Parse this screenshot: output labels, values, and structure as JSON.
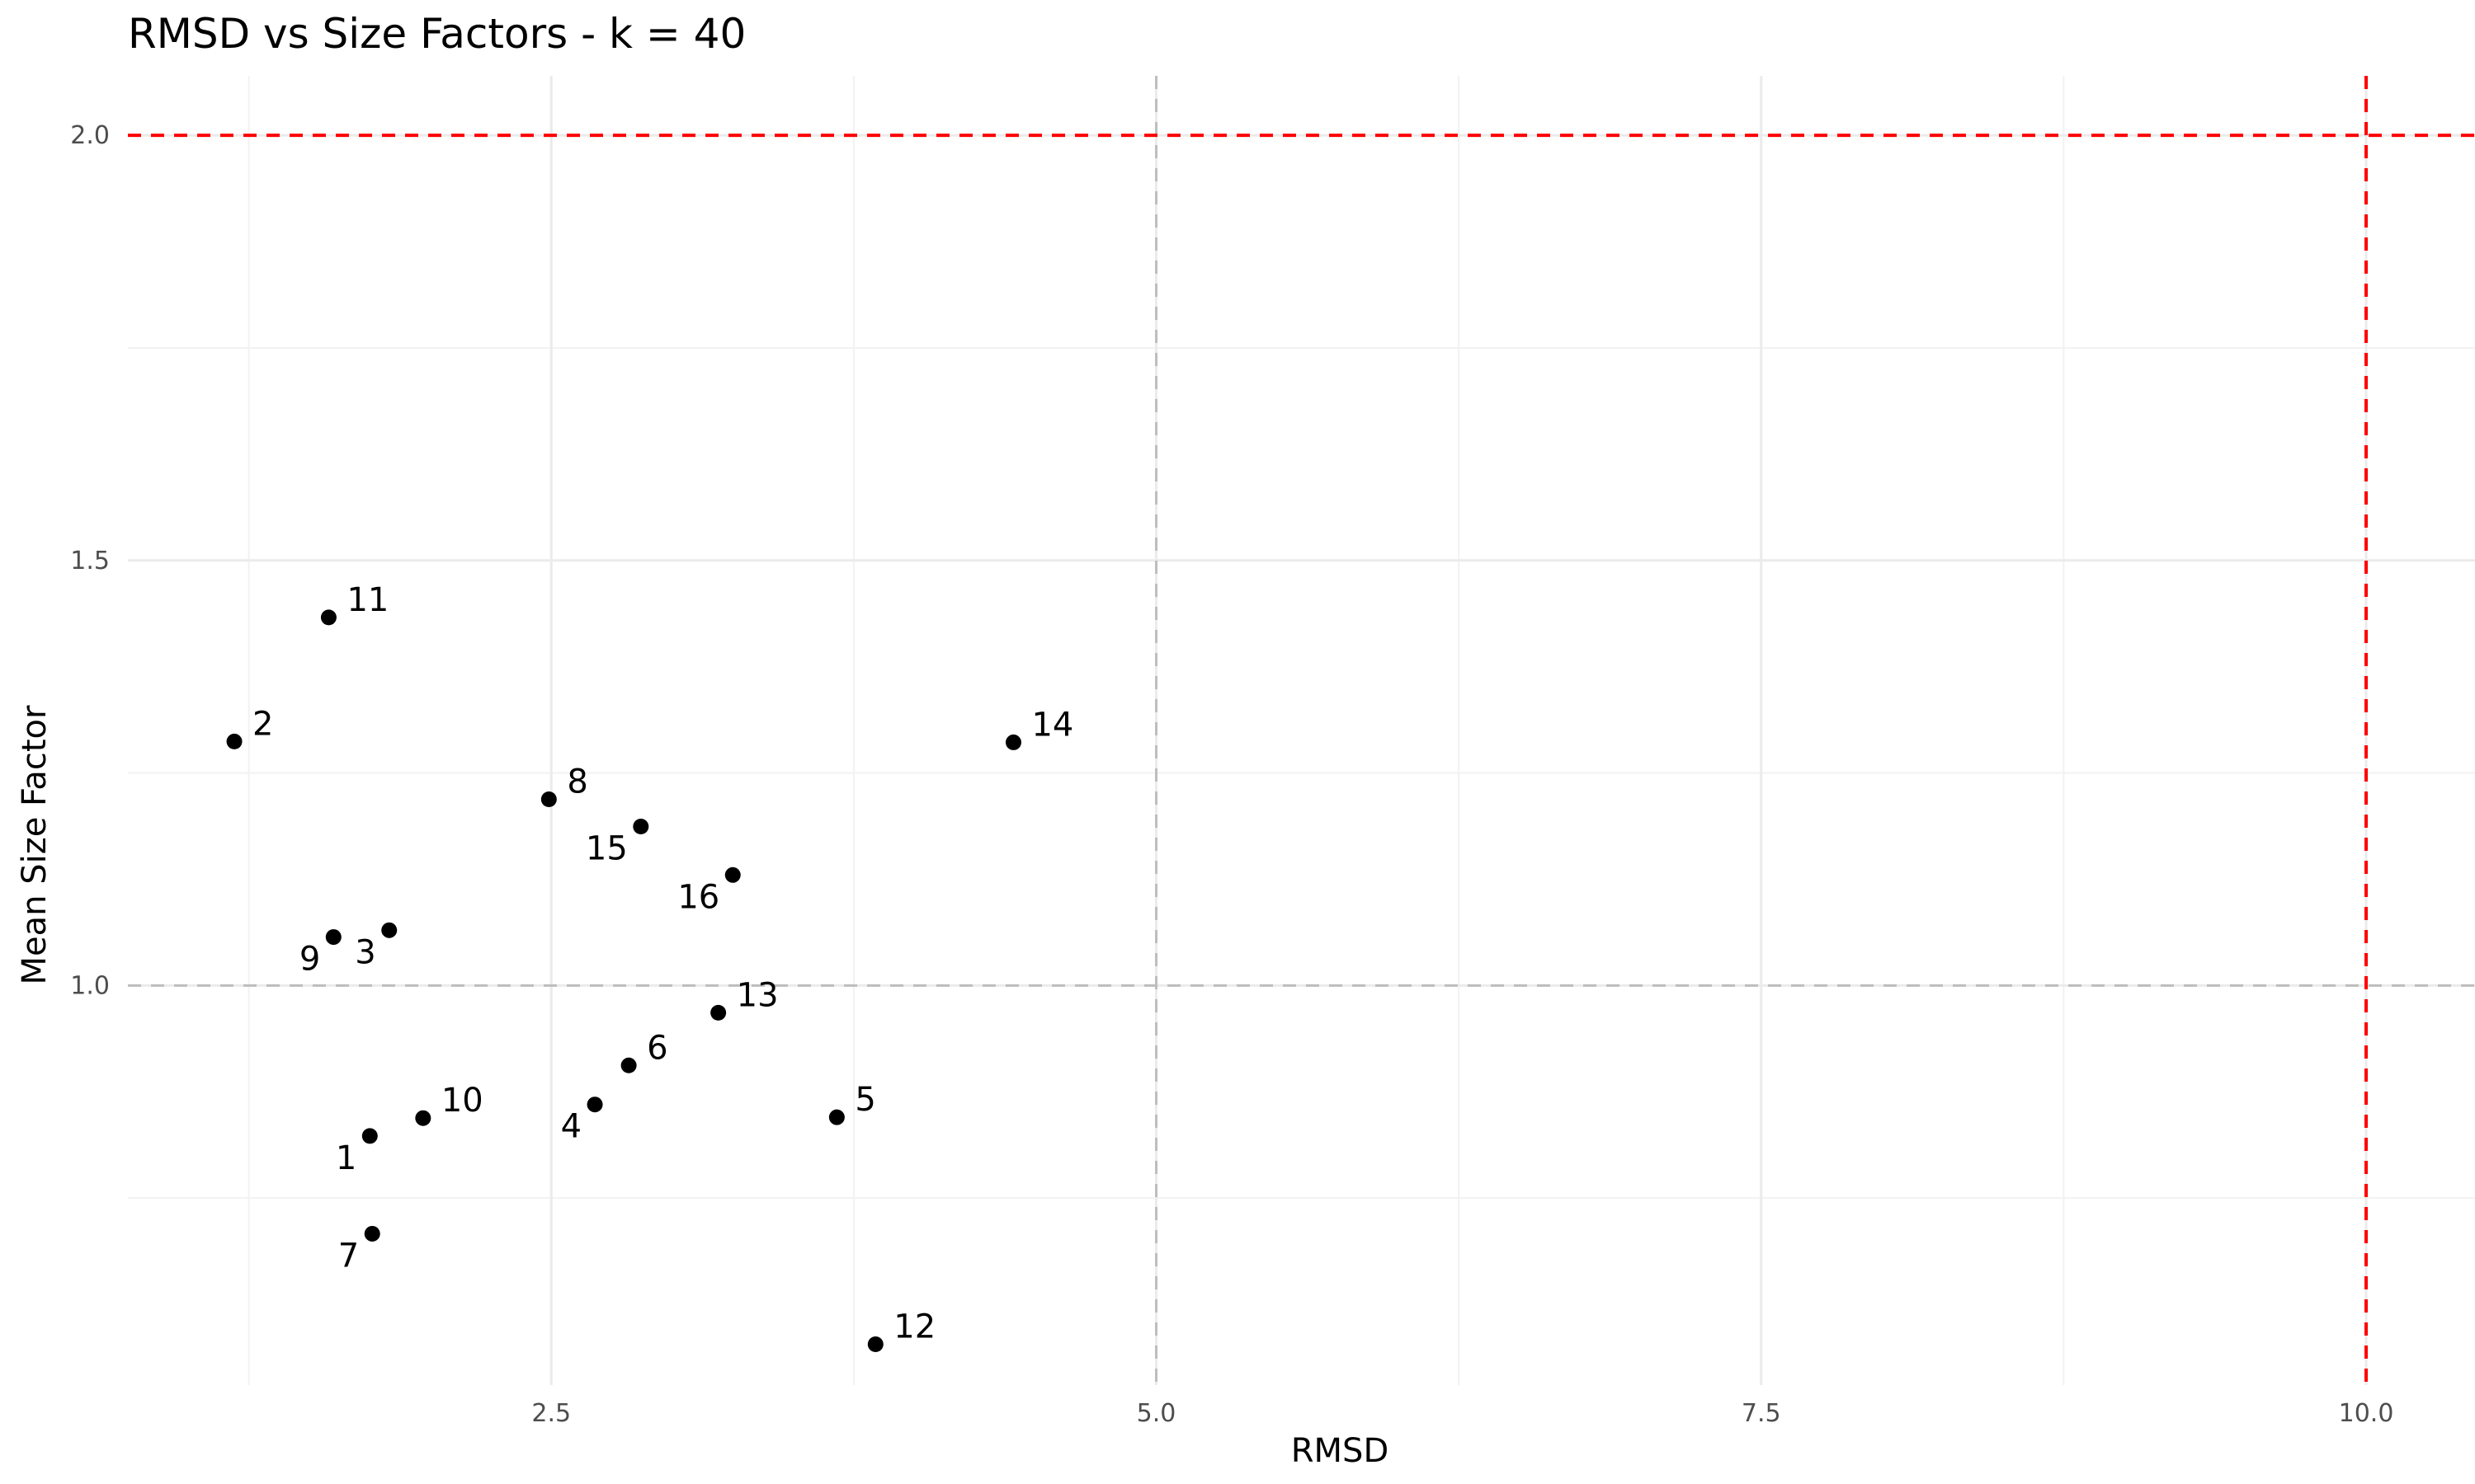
{
  "chart_data": {
    "type": "scatter",
    "title": "RMSD vs Size Factors - k = 40",
    "xlabel": "RMSD",
    "ylabel": "Mean Size Factor",
    "xlim": [
      0.75,
      10.45
    ],
    "ylim": [
      0.53,
      2.07
    ],
    "x_ticks": [
      2.5,
      5.0,
      7.5,
      10.0
    ],
    "x_tick_labels": [
      "2.5",
      "5.0",
      "7.5",
      "10.0"
    ],
    "y_ticks": [
      1.0,
      1.5,
      2.0
    ],
    "y_tick_labels": [
      "1.0",
      "1.5",
      "2.0"
    ],
    "grid": true,
    "legend": "none",
    "point_color": "#000000",
    "reference_lines": [
      {
        "orientation": "vertical",
        "value": 5.0,
        "color": "#bdbdbd",
        "style": "dashed"
      },
      {
        "orientation": "horizontal",
        "value": 1.0,
        "color": "#bdbdbd",
        "style": "dashed"
      },
      {
        "orientation": "vertical",
        "value": 10.0,
        "color": "#ff0000",
        "style": "dashed"
      },
      {
        "orientation": "horizontal",
        "value": 2.0,
        "color": "#ff0000",
        "style": "dashed"
      }
    ],
    "points": [
      {
        "label": "1",
        "x": 1.75,
        "y": 0.823,
        "label_pos": "bottom-left"
      },
      {
        "label": "2",
        "x": 1.19,
        "y": 1.287,
        "label_pos": "top-right"
      },
      {
        "label": "3",
        "x": 1.83,
        "y": 1.065,
        "label_pos": "bottom-left"
      },
      {
        "label": "4",
        "x": 2.68,
        "y": 0.86,
        "label_pos": "bottom-left"
      },
      {
        "label": "5",
        "x": 3.68,
        "y": 0.845,
        "label_pos": "top-right"
      },
      {
        "label": "6",
        "x": 2.82,
        "y": 0.906,
        "label_pos": "top-right"
      },
      {
        "label": "7",
        "x": 1.76,
        "y": 0.708,
        "label_pos": "bottom-left"
      },
      {
        "label": "8",
        "x": 2.49,
        "y": 1.219,
        "label_pos": "top-right"
      },
      {
        "label": "9",
        "x": 1.6,
        "y": 1.057,
        "label_pos": "bottom-left"
      },
      {
        "label": "10",
        "x": 1.97,
        "y": 0.844,
        "label_pos": "top-right"
      },
      {
        "label": "11",
        "x": 1.58,
        "y": 1.433,
        "label_pos": "top-right"
      },
      {
        "label": "12",
        "x": 3.84,
        "y": 0.578,
        "label_pos": "top-right"
      },
      {
        "label": "13",
        "x": 3.19,
        "y": 0.968,
        "label_pos": "top-right"
      },
      {
        "label": "14",
        "x": 4.41,
        "y": 1.286,
        "label_pos": "top-right"
      },
      {
        "label": "15",
        "x": 2.87,
        "y": 1.187,
        "label_pos": "bottom-left"
      },
      {
        "label": "16",
        "x": 3.25,
        "y": 1.13,
        "label_pos": "bottom-left"
      }
    ]
  }
}
